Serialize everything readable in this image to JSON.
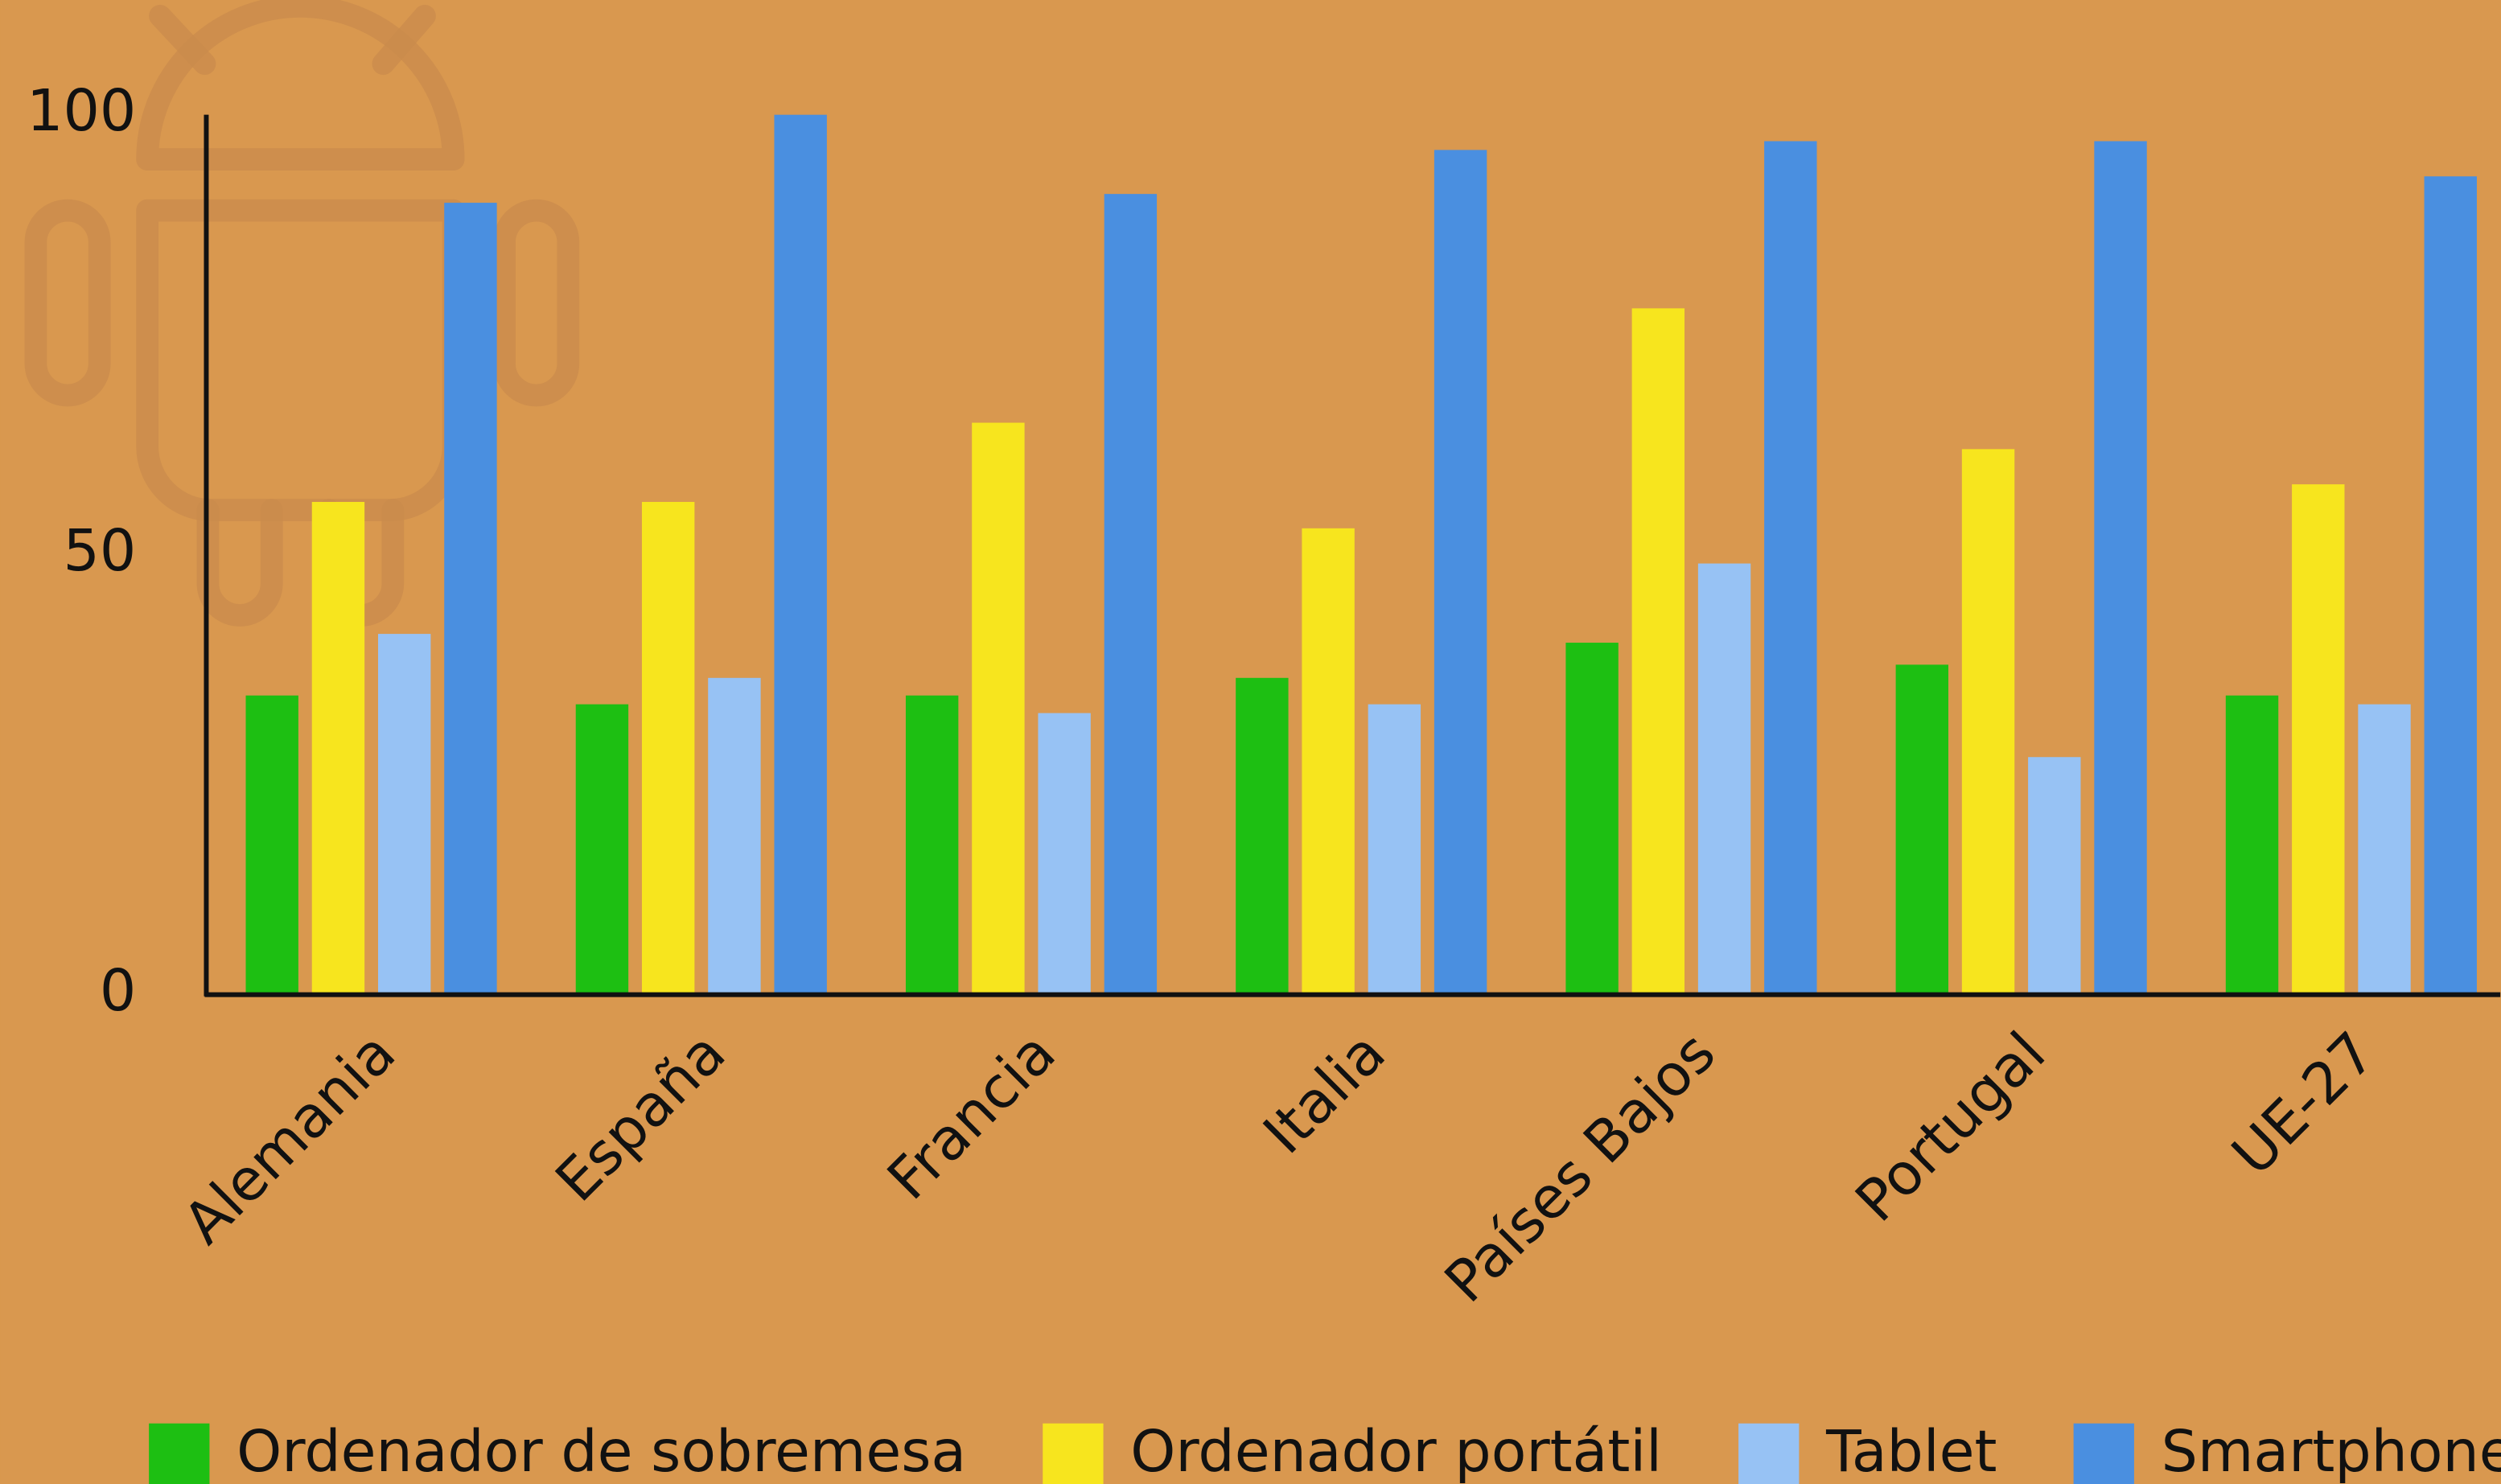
{
  "chart_data": {
    "type": "bar",
    "categories": [
      "Alemania",
      "España",
      "Francia",
      "Italia",
      "Países Bajos",
      "Portugal",
      "UE-27"
    ],
    "series": [
      {
        "name": "Ordenador de sobremesa",
        "color": "#1DBF12",
        "values": [
          34,
          33,
          34,
          36,
          40,
          37.5,
          34
        ]
      },
      {
        "name": "Ordenador portátil",
        "color": "#F7E51E",
        "values": [
          56,
          56,
          65,
          53,
          78,
          62,
          58
        ]
      },
      {
        "name": "Tablet",
        "color": "#97C2F4",
        "values": [
          41,
          36,
          32,
          33,
          49,
          27,
          33
        ]
      },
      {
        "name": "Smartphone",
        "color": "#4A8FE0",
        "values": [
          90,
          100,
          91,
          96,
          97,
          97,
          93
        ]
      }
    ],
    "ylim": [
      0,
      100
    ],
    "yticks": [
      0,
      50,
      100
    ],
    "grid": false,
    "legend": "bottom"
  }
}
